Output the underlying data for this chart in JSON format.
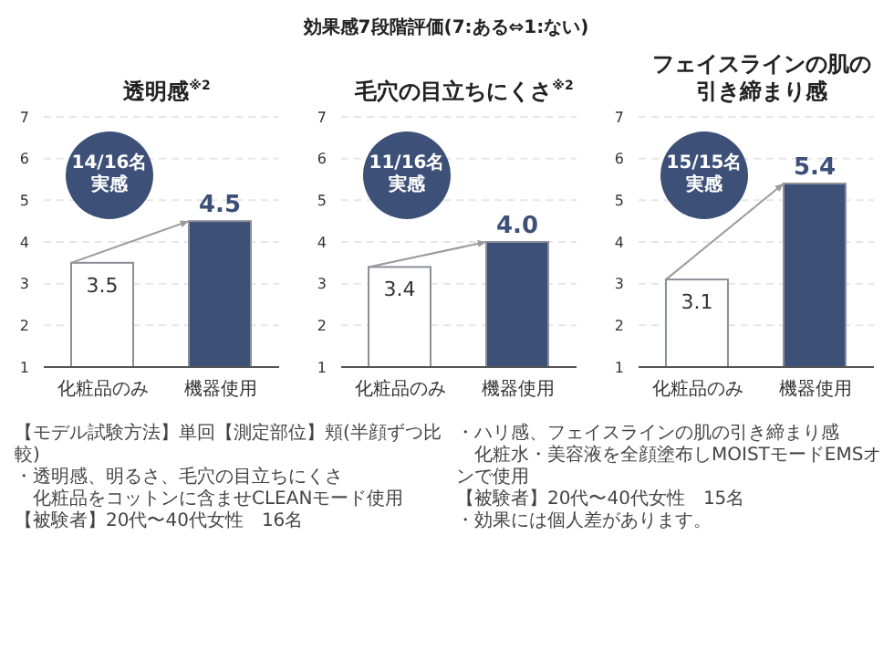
{
  "chart_data": [
    {
      "type": "bar",
      "title": "透明感$^{※2}$",
      "categories": [
        "化粧品のみ",
        "機器使用"
      ],
      "values": [
        3.5,
        4.5
      ],
      "colors": [
        "#ffffff",
        "#3d5078"
      ],
      "ylim": [
        1,
        7
      ],
      "yticks": [
        1,
        2,
        3,
        4,
        5,
        6,
        7
      ],
      "grid": "y",
      "data_labels": true,
      "annotations": [
        "14/16名実感",
        "【モデル試験方法】単回【測定部位】頬(半顔ずつ比較)",
        "・透明感、明るさ、毛穴の目立ちにくさ",
        "　化粧品をコットンに含ませCLEANモード使用",
        "【被験者】20代〜40代女性　16名"
      ]
    },
    {
      "type": "bar",
      "title": "毛穴の目立ちにくさ$^{※2}$",
      "subtitle": "効果感7段階評価(7:ある⇔1:ない)",
      "categories": [
        "化粧品のみ",
        "機器使用"
      ],
      "values": [
        3.4,
        4.0
      ],
      "value_labels": [
        "3.4",
        "4.0"
      ],
      "colors": [
        "#ffffff",
        "#3d5078"
      ],
      "ylim": [
        1,
        7
      ],
      "yticks": [
        1,
        2,
        3,
        4,
        5,
        6,
        7
      ],
      "grid": "y",
      "annotations": [
        "11/16名実感"
      ]
    },
    {
      "type": "bar",
      "title": "フェイスラインの肌の引き締まり感",
      "categories": [
        "化粧品のみ",
        "機器使用"
      ],
      "values": [
        3.1,
        5.4
      ],
      "colors": [
        "#ffffff",
        "#3d5078"
      ],
      "ylim": [
        1,
        7
      ],
      "yticks": [
        1,
        2,
        3,
        4,
        5,
        6,
        7
      ],
      "grid": "y",
      "data_labels": true,
      "annotations": [
        "15/15名実感",
        "・ハリ感、フェイスラインの肌の引き締まり感",
        "　化粧水・美容液を全顔塗布しMOISTモードEMSオンで使用",
        "【被験者】20代〜40代女性　15名",
        "・効果には個人差があります。"
      ]
    }
  ]
}
